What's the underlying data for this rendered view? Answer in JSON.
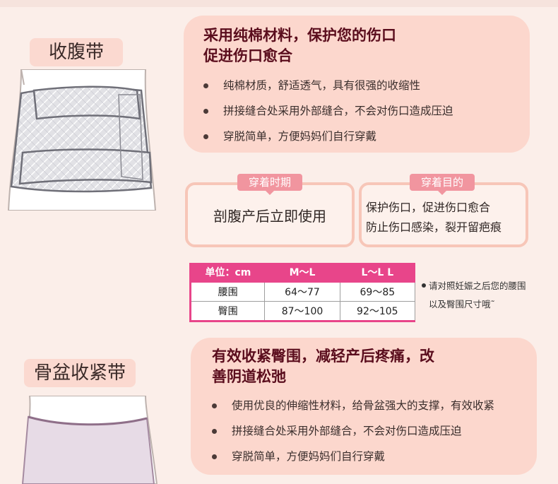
{
  "belly_band": {
    "name": "收腹带",
    "headline_line1": "采用纯棉材料，保护您的伤口",
    "headline_line2": "促进伤口愈合",
    "features": [
      "纯棉材质，舒适透气，具有很强的收缩性",
      "拼接缝合处采用外部缝合，不会对伤口造成压迫",
      "穿脱简单，方便妈妈们自行穿戴"
    ]
  },
  "wear_period": {
    "tag": "穿着时期",
    "text": "剖腹产后立即使用"
  },
  "wear_purpose": {
    "tag": "穿着目的",
    "lines": [
      "保护伤口，促进伤口愈合",
      "防止伤口感染，裂开留疤痕"
    ]
  },
  "size_table": {
    "headers": [
      "单位：cm",
      "M～L",
      "L～L L"
    ],
    "rows": [
      {
        "label": "腰围",
        "values": [
          "64～77",
          "69～85"
        ]
      },
      {
        "label": "臀围",
        "values": [
          "87～100",
          "92～105"
        ]
      }
    ],
    "note_line1": "请对照妊娠之后您的腰围",
    "note_line2": "以及臀围尺寸哦˜"
  },
  "pelvic_belt": {
    "name": "骨盆收紧带",
    "headline_line1": "有效收紧臀围，减轻产后疼痛，改",
    "headline_line2": "善阴道松弛",
    "features": [
      "使用优良的伸缩性材料，给骨盆强大的支撑，有效收紧",
      "拼接缝合处采用外部缝合，不会对伤口造成压迫",
      "穿脱简单，方便妈妈们自行穿戴"
    ]
  },
  "colors": {
    "card_bg": "#fcd7cd",
    "headline": "#5a0d1d",
    "table_accent": "#e8458a",
    "tag_bg": "#f1959f"
  }
}
